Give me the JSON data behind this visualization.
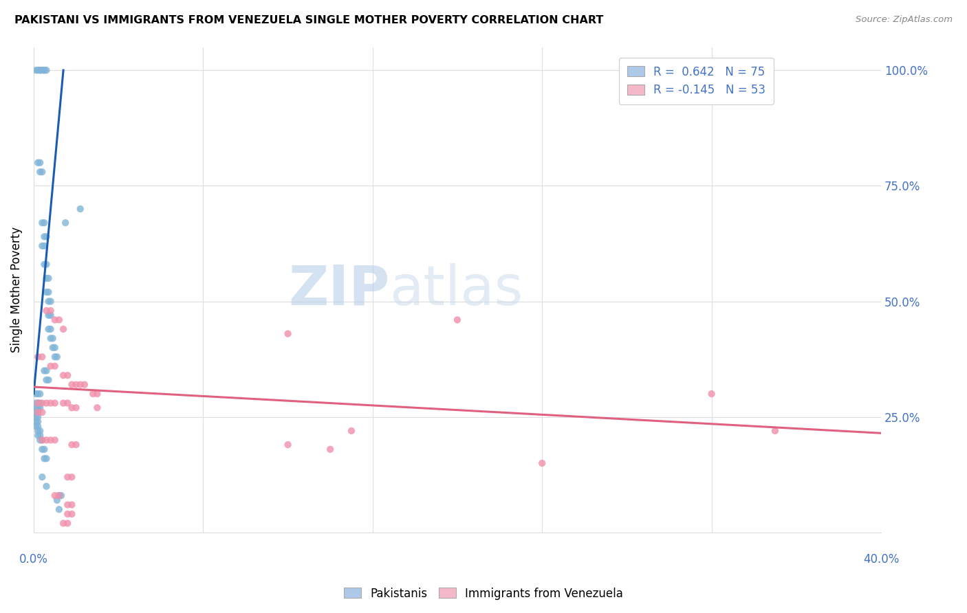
{
  "title": "PAKISTANI VS IMMIGRANTS FROM VENEZUELA SINGLE MOTHER POVERTY CORRELATION CHART",
  "source": "Source: ZipAtlas.com",
  "ylabel": "Single Mother Poverty",
  "xmin": 0.0,
  "xmax": 0.4,
  "ymin": 0.0,
  "ymax": 1.05,
  "ytick_vals": [
    0.0,
    0.25,
    0.5,
    0.75,
    1.0
  ],
  "ytick_labels_right": [
    "",
    "25.0%",
    "50.0%",
    "75.0%",
    "100.0%"
  ],
  "xtick_vals": [
    0.0,
    0.08,
    0.16,
    0.24,
    0.32,
    0.4
  ],
  "legend_r1": "R =  0.642   N = 75",
  "legend_r2": "R = -0.145   N = 53",
  "legend_color1": "#adc8e8",
  "legend_color2": "#f4b8c8",
  "pakistani_color": "#80b4d8",
  "venezuela_color": "#f090aa",
  "line_color_pak": "#1a5cb0",
  "line_color_ven": "#e06080",
  "pak_line": [
    [
      0.0,
      0.3
    ],
    [
      0.014,
      1.0
    ]
  ],
  "ven_line": [
    [
      0.0,
      0.315
    ],
    [
      0.4,
      0.215
    ]
  ],
  "pakistani_points": [
    [
      0.001,
      1.0
    ],
    [
      0.002,
      1.0
    ],
    [
      0.003,
      1.0
    ],
    [
      0.003,
      1.0
    ],
    [
      0.004,
      1.0
    ],
    [
      0.005,
      1.0
    ],
    [
      0.005,
      1.0
    ],
    [
      0.006,
      1.0
    ],
    [
      0.002,
      0.8
    ],
    [
      0.003,
      0.8
    ],
    [
      0.003,
      0.78
    ],
    [
      0.004,
      0.78
    ],
    [
      0.004,
      0.67
    ],
    [
      0.005,
      0.67
    ],
    [
      0.005,
      0.64
    ],
    [
      0.006,
      0.64
    ],
    [
      0.004,
      0.62
    ],
    [
      0.005,
      0.62
    ],
    [
      0.005,
      0.58
    ],
    [
      0.006,
      0.58
    ],
    [
      0.006,
      0.55
    ],
    [
      0.007,
      0.55
    ],
    [
      0.006,
      0.52
    ],
    [
      0.007,
      0.52
    ],
    [
      0.007,
      0.5
    ],
    [
      0.008,
      0.5
    ],
    [
      0.007,
      0.47
    ],
    [
      0.008,
      0.47
    ],
    [
      0.007,
      0.44
    ],
    [
      0.008,
      0.44
    ],
    [
      0.008,
      0.42
    ],
    [
      0.009,
      0.42
    ],
    [
      0.009,
      0.4
    ],
    [
      0.01,
      0.4
    ],
    [
      0.01,
      0.38
    ],
    [
      0.011,
      0.38
    ],
    [
      0.005,
      0.35
    ],
    [
      0.006,
      0.35
    ],
    [
      0.006,
      0.33
    ],
    [
      0.007,
      0.33
    ],
    [
      0.015,
      0.67
    ],
    [
      0.022,
      0.7
    ],
    [
      0.001,
      0.3
    ],
    [
      0.002,
      0.3
    ],
    [
      0.003,
      0.3
    ],
    [
      0.001,
      0.28
    ],
    [
      0.002,
      0.28
    ],
    [
      0.003,
      0.28
    ],
    [
      0.001,
      0.27
    ],
    [
      0.002,
      0.27
    ],
    [
      0.003,
      0.27
    ],
    [
      0.001,
      0.26
    ],
    [
      0.002,
      0.26
    ],
    [
      0.001,
      0.25
    ],
    [
      0.002,
      0.25
    ],
    [
      0.001,
      0.24
    ],
    [
      0.002,
      0.24
    ],
    [
      0.001,
      0.23
    ],
    [
      0.002,
      0.23
    ],
    [
      0.002,
      0.22
    ],
    [
      0.003,
      0.22
    ],
    [
      0.002,
      0.21
    ],
    [
      0.003,
      0.21
    ],
    [
      0.003,
      0.2
    ],
    [
      0.004,
      0.2
    ],
    [
      0.004,
      0.18
    ],
    [
      0.005,
      0.18
    ],
    [
      0.005,
      0.16
    ],
    [
      0.006,
      0.16
    ],
    [
      0.004,
      0.12
    ],
    [
      0.006,
      0.1
    ],
    [
      0.012,
      0.08
    ],
    [
      0.013,
      0.08
    ],
    [
      0.011,
      0.07
    ],
    [
      0.012,
      0.05
    ]
  ],
  "venezuela_points": [
    [
      0.006,
      0.48
    ],
    [
      0.008,
      0.48
    ],
    [
      0.01,
      0.46
    ],
    [
      0.012,
      0.46
    ],
    [
      0.014,
      0.44
    ],
    [
      0.2,
      0.46
    ],
    [
      0.12,
      0.43
    ],
    [
      0.002,
      0.38
    ],
    [
      0.004,
      0.38
    ],
    [
      0.008,
      0.36
    ],
    [
      0.01,
      0.36
    ],
    [
      0.014,
      0.34
    ],
    [
      0.016,
      0.34
    ],
    [
      0.018,
      0.32
    ],
    [
      0.02,
      0.32
    ],
    [
      0.022,
      0.32
    ],
    [
      0.024,
      0.32
    ],
    [
      0.028,
      0.3
    ],
    [
      0.03,
      0.3
    ],
    [
      0.32,
      0.3
    ],
    [
      0.002,
      0.28
    ],
    [
      0.004,
      0.28
    ],
    [
      0.006,
      0.28
    ],
    [
      0.008,
      0.28
    ],
    [
      0.01,
      0.28
    ],
    [
      0.014,
      0.28
    ],
    [
      0.016,
      0.28
    ],
    [
      0.018,
      0.27
    ],
    [
      0.02,
      0.27
    ],
    [
      0.03,
      0.27
    ],
    [
      0.002,
      0.26
    ],
    [
      0.004,
      0.26
    ],
    [
      0.15,
      0.22
    ],
    [
      0.004,
      0.2
    ],
    [
      0.006,
      0.2
    ],
    [
      0.008,
      0.2
    ],
    [
      0.01,
      0.2
    ],
    [
      0.018,
      0.19
    ],
    [
      0.02,
      0.19
    ],
    [
      0.14,
      0.18
    ],
    [
      0.35,
      0.22
    ],
    [
      0.016,
      0.12
    ],
    [
      0.018,
      0.12
    ],
    [
      0.12,
      0.19
    ],
    [
      0.01,
      0.08
    ],
    [
      0.012,
      0.08
    ],
    [
      0.016,
      0.06
    ],
    [
      0.018,
      0.06
    ],
    [
      0.016,
      0.04
    ],
    [
      0.018,
      0.04
    ],
    [
      0.014,
      0.02
    ],
    [
      0.016,
      0.02
    ],
    [
      0.24,
      0.15
    ]
  ]
}
